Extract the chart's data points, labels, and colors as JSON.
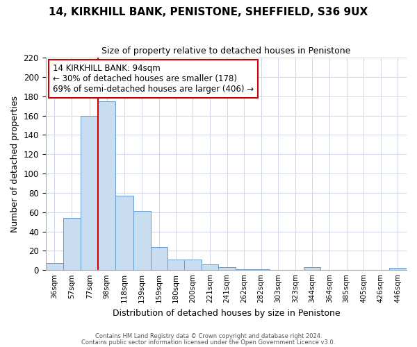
{
  "title": "14, KIRKHILL BANK, PENISTONE, SHEFFIELD, S36 9UX",
  "subtitle": "Size of property relative to detached houses in Penistone",
  "xlabel": "Distribution of detached houses by size in Penistone",
  "ylabel": "Number of detached properties",
  "bin_labels": [
    "36sqm",
    "57sqm",
    "77sqm",
    "98sqm",
    "118sqm",
    "139sqm",
    "159sqm",
    "180sqm",
    "200sqm",
    "221sqm",
    "241sqm",
    "262sqm",
    "282sqm",
    "303sqm",
    "323sqm",
    "344sqm",
    "364sqm",
    "385sqm",
    "405sqm",
    "426sqm",
    "446sqm"
  ],
  "bar_values": [
    7,
    54,
    160,
    175,
    77,
    61,
    24,
    11,
    11,
    6,
    3,
    1,
    1,
    0,
    0,
    3,
    0,
    0,
    0,
    0,
    2
  ],
  "bar_color": "#c9ddf0",
  "bar_edge_color": "#6699cc",
  "property_line_color": "#cc0000",
  "ylim": [
    0,
    220
  ],
  "yticks": [
    0,
    20,
    40,
    60,
    80,
    100,
    120,
    140,
    160,
    180,
    200,
    220
  ],
  "annotation_title": "14 KIRKHILL BANK: 94sqm",
  "annotation_line1": "← 30% of detached houses are smaller (178)",
  "annotation_line2": "69% of semi-detached houses are larger (406) →",
  "footer_line1": "Contains HM Land Registry data © Crown copyright and database right 2024.",
  "footer_line2": "Contains public sector information licensed under the Open Government Licence v3.0.",
  "bin_width": 21
}
